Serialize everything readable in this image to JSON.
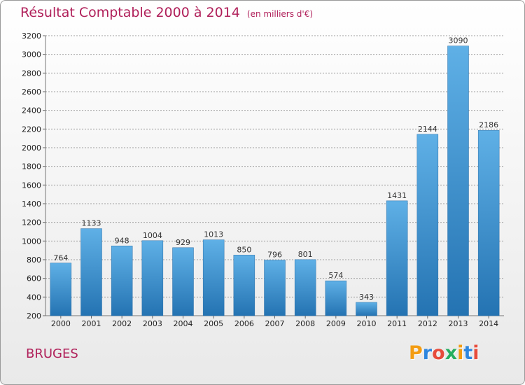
{
  "title": "Résultat Comptable 2000 à 2014",
  "subtitle": "(en milliers d'€)",
  "commune": "BRUGES",
  "logo": {
    "text": "Proxiti",
    "letters": [
      {
        "char": "P",
        "color": "#f39c12"
      },
      {
        "char": "r",
        "color": "#2e86de"
      },
      {
        "char": "o",
        "color": "#e74c3c"
      },
      {
        "char": "x",
        "color": "#27ae60"
      },
      {
        "char": "i",
        "color": "#f39c12"
      },
      {
        "char": "t",
        "color": "#2e86de"
      },
      {
        "char": "i",
        "color": "#e74c3c"
      }
    ]
  },
  "colors": {
    "title": "#b0205a",
    "bar_top": "#5dade2",
    "bar_bottom": "#2471a3",
    "grid": "#999999"
  },
  "chart_data": {
    "type": "bar",
    "title": "Résultat Comptable 2000 à 2014",
    "subtitle": "(en milliers d'€)",
    "categories": [
      "2000",
      "2001",
      "2002",
      "2003",
      "2004",
      "2005",
      "2006",
      "2007",
      "2008",
      "2009",
      "2010",
      "2011",
      "2012",
      "2013",
      "2014"
    ],
    "values": [
      764,
      1133,
      948,
      1004,
      929,
      1013,
      850,
      796,
      801,
      574,
      343,
      1431,
      2144,
      3090,
      2186
    ],
    "ylim": [
      200,
      3200
    ],
    "yticks": [
      200,
      400,
      600,
      800,
      1000,
      1200,
      1400,
      1600,
      1800,
      2000,
      2200,
      2400,
      2600,
      2800,
      3000,
      3200
    ],
    "grid": true,
    "data_labels": true
  }
}
